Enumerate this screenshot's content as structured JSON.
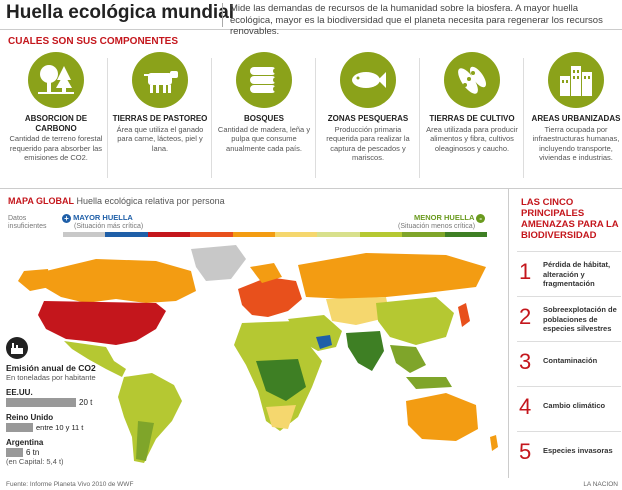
{
  "header": {
    "title": "Huella ecológica mundial",
    "subtitle": "Mide las demandas de recursos de la humanidad sobre la biosfera. A mayor huella ecológica, mayor es la biodiversidad que el planeta necesita para regenerar los recursos renovables."
  },
  "components": {
    "heading": "CUALES SON SUS COMPONENTES",
    "items": [
      {
        "name": "ABSORCION DE CARBONO",
        "desc": "Cantidad de terreno forestal requerido para absorber las emisiones de CO2.",
        "icon": "factory-trees-icon"
      },
      {
        "name": "TIERRAS DE PASTOREO",
        "desc": "Área que utiliza el ganado para carne, lácteos, piel y lana.",
        "icon": "cow-icon"
      },
      {
        "name": "BOSQUES",
        "desc": "Cantidad de madera, leña y pulpa que consume anualmente cada país.",
        "icon": "logs-icon"
      },
      {
        "name": "ZONAS PESQUERAS",
        "desc": "Producción primaria requerida para realizar la captura de pescados y mariscos.",
        "icon": "fish-icon"
      },
      {
        "name": "TIERRAS DE CULTIVO",
        "desc": "Area utilizada para producir alimentos y fibra, cultivos oleaginosos y caucho.",
        "icon": "peas-icon"
      },
      {
        "name": "AREAS URBANIZADAS",
        "desc": "Tierra ocupada por infraestructuras humanas, incluyendo transporte, viviendas e industrias.",
        "icon": "buildings-icon"
      }
    ]
  },
  "map": {
    "title": "MAPA GLOBAL",
    "subtitle": "Huella ecológica relativa por persona",
    "legend": {
      "no_data": "Datos insuficientes",
      "high": "MAYOR HUELLA",
      "high_note": "(Situación más crítica)",
      "low": "MENOR HUELLA",
      "low_note": "(Situación menos crítica)",
      "colors": [
        "#c8c8c8",
        "#1f5fa8",
        "#c4161c",
        "#e8501c",
        "#f39c12",
        "#f5d76e",
        "#d8e08c",
        "#b5c832",
        "#7fa52a",
        "#3e7f24"
      ]
    }
  },
  "co2": {
    "title": "Emisión anual de CO2",
    "subtitle": "En toneladas por habitante",
    "rows": [
      {
        "country": "EE.UU.",
        "value": "20 t",
        "prefix": "",
        "ratio": 0.7
      },
      {
        "country": "Reino Unido",
        "value": "entre 10 y 11 t",
        "prefix": "",
        "ratio": 0.27
      },
      {
        "country": "Argentina",
        "value": "6 tn",
        "note": "(en Capital: 5,4 t)",
        "prefix": "",
        "ratio": 0.17
      }
    ]
  },
  "threats": {
    "heading": "LAS CINCO PRINCIPALES AMENAZAS PARA LA BIODIVERSIDAD",
    "items": [
      {
        "num": "1",
        "text": "Pérdida de hábitat, alteración y fragmentación"
      },
      {
        "num": "2",
        "text": "Sobreexplotación de poblaciones de especies silvestres"
      },
      {
        "num": "3",
        "text": "Contaminación"
      },
      {
        "num": "4",
        "text": "Cambio climático"
      },
      {
        "num": "5",
        "text": "Especies invasoras"
      }
    ]
  },
  "footer": {
    "source": "Fuente: Informe Planeta Vivo 2010 de WWF",
    "brand": "LA NACION"
  }
}
